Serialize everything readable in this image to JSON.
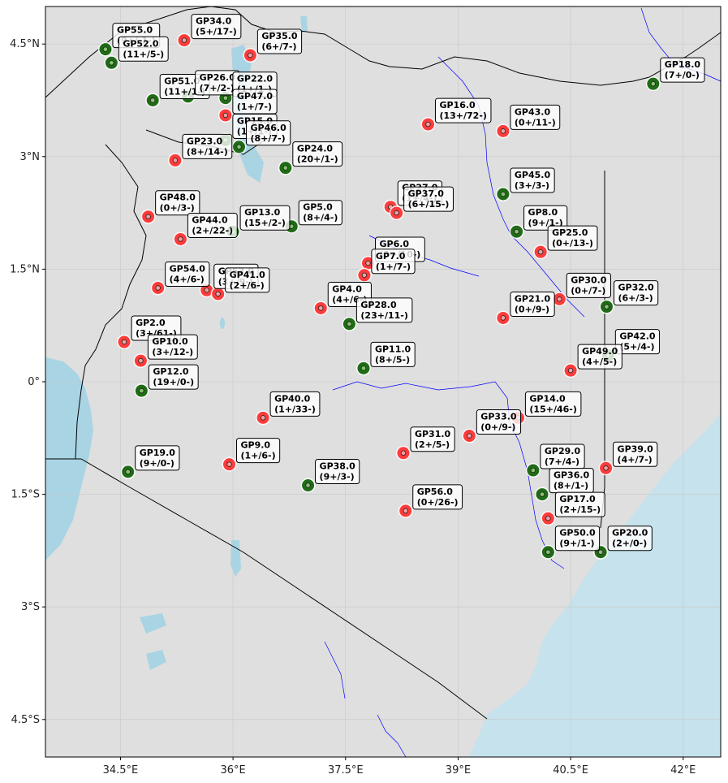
{
  "colors": {
    "land": "#dfdfdf",
    "water": "#c6e2ec",
    "lake": "#a9d4e4",
    "river": "#0000ff",
    "border": "#000000",
    "grid": "#c8c8c8",
    "positive": "#1f6b16",
    "negative": "#ff3b3b",
    "label_bg": "#ffffff"
  },
  "map": {
    "lon_range": [
      33.5,
      42.5
    ],
    "lat_range": [
      -5.0,
      5.0
    ],
    "x_ticks": [
      {
        "value": 34.5,
        "label": "34.5°E"
      },
      {
        "value": 36.0,
        "label": "36°E"
      },
      {
        "value": 37.5,
        "label": "37.5°E"
      },
      {
        "value": 39.0,
        "label": "39°E"
      },
      {
        "value": 40.5,
        "label": "40.5°E"
      },
      {
        "value": 42.0,
        "label": "42°E"
      }
    ],
    "y_ticks": [
      {
        "value": 4.5,
        "label": "4.5°N"
      },
      {
        "value": 3.0,
        "label": "3°N"
      },
      {
        "value": 1.5,
        "label": "1.5°N"
      },
      {
        "value": 0.0,
        "label": "0°"
      },
      {
        "value": -1.5,
        "label": "1.5°S"
      },
      {
        "value": -3.0,
        "label": "3°S"
      },
      {
        "value": -4.5,
        "label": "4.5°S"
      }
    ],
    "grid": true
  },
  "points": [
    {
      "name": "GP55.0",
      "counts": "(9+/-1-)",
      "lon": 34.3,
      "lat": 4.43,
      "pos": 9,
      "neg": 1
    },
    {
      "name": "GP52.0",
      "counts": "(11+/5-)",
      "lon": 34.38,
      "lat": 4.25,
      "pos": 11,
      "neg": 5
    },
    {
      "name": "GP34.0",
      "counts": "(5+/17-)",
      "lon": 35.35,
      "lat": 4.55,
      "pos": 5,
      "neg": 17
    },
    {
      "name": "GP35.0",
      "counts": "(6+/7-)",
      "lon": 36.23,
      "lat": 4.35,
      "pos": 6,
      "neg": 7
    },
    {
      "name": "GP51.0",
      "counts": "(11+/1-)",
      "lon": 34.93,
      "lat": 3.75,
      "pos": 11,
      "neg": 1
    },
    {
      "name": "GP26.0",
      "counts": "(7+/2-)",
      "lon": 35.4,
      "lat": 3.8,
      "pos": 7,
      "neg": 2
    },
    {
      "name": "GP22.0",
      "counts": "(1+/1-)",
      "lon": 35.9,
      "lat": 3.78,
      "pos": 1,
      "neg": 1
    },
    {
      "name": "GP47.0",
      "counts": "(1+/7-)",
      "lon": 35.9,
      "lat": 3.55,
      "pos": 1,
      "neg": 7
    },
    {
      "name": "GP15.0",
      "counts": "(1+/1-)",
      "lon": 35.9,
      "lat": 3.22,
      "pos": 1,
      "neg": 1
    },
    {
      "name": "GP46.0",
      "counts": "(8+/7-)",
      "lon": 36.08,
      "lat": 3.13,
      "pos": 8,
      "neg": 7
    },
    {
      "name": "GP23.0",
      "counts": "(8+/14-)",
      "lon": 35.23,
      "lat": 2.95,
      "pos": 8,
      "neg": 14
    },
    {
      "name": "GP24.0",
      "counts": "(20+/1-)",
      "lon": 36.7,
      "lat": 2.85,
      "pos": 20,
      "neg": 1
    },
    {
      "name": "GP16.0",
      "counts": "(13+/72-)",
      "lon": 38.6,
      "lat": 3.43,
      "pos": 13,
      "neg": 72
    },
    {
      "name": "GP43.0",
      "counts": "(0+/11-)",
      "lon": 39.6,
      "lat": 3.34,
      "pos": 0,
      "neg": 11
    },
    {
      "name": "GP18.0",
      "counts": "(7+/0-)",
      "lon": 41.6,
      "lat": 3.97,
      "pos": 7,
      "neg": 0
    },
    {
      "name": "GP45.0",
      "counts": "(3+/3-)",
      "lon": 39.6,
      "lat": 2.5,
      "pos": 3,
      "neg": 3
    },
    {
      "name": "GP48.0",
      "counts": "(0+/3-)",
      "lon": 34.87,
      "lat": 2.2,
      "pos": 0,
      "neg": 3
    },
    {
      "name": "GP44.0",
      "counts": "(2+/22-)",
      "lon": 35.3,
      "lat": 1.9,
      "pos": 2,
      "neg": 22
    },
    {
      "name": "GP13.0",
      "counts": "(15+/2-)",
      "lon": 36.0,
      "lat": 2.0,
      "pos": 15,
      "neg": 2
    },
    {
      "name": "GP5.0",
      "counts": "(8+/4-)",
      "lon": 36.78,
      "lat": 2.07,
      "pos": 8,
      "neg": 4
    },
    {
      "name": "GP27.0",
      "counts": "(1+/4-)",
      "lon": 38.1,
      "lat": 2.33,
      "pos": 1,
      "neg": 4
    },
    {
      "name": "GP37.0",
      "counts": "(6+/15-)",
      "lon": 38.18,
      "lat": 2.25,
      "pos": 6,
      "neg": 15
    },
    {
      "name": "GP8.0",
      "counts": "(9+/1-)",
      "lon": 39.78,
      "lat": 2.0,
      "pos": 9,
      "neg": 1
    },
    {
      "name": "GP25.0",
      "counts": "(0+/13-)",
      "lon": 40.1,
      "lat": 1.73,
      "pos": 0,
      "neg": 13
    },
    {
      "name": "GP6.0",
      "counts": "(3+/10-)",
      "lon": 37.8,
      "lat": 1.58,
      "pos": 3,
      "neg": 10
    },
    {
      "name": "GP7.0",
      "counts": "(1+/7-)",
      "lon": 37.75,
      "lat": 1.42,
      "pos": 1,
      "neg": 7
    },
    {
      "name": "GP54.0",
      "counts": "(4+/6-)",
      "lon": 35.0,
      "lat": 1.25,
      "pos": 4,
      "neg": 6
    },
    {
      "name": "GP53.0",
      "counts": "(3+/9-)",
      "lon": 35.65,
      "lat": 1.22,
      "pos": 3,
      "neg": 9
    },
    {
      "name": "GP41.0",
      "counts": "(2+/6-)",
      "lon": 35.8,
      "lat": 1.17,
      "pos": 2,
      "neg": 6
    },
    {
      "name": "GP30.0",
      "counts": "(0+/7-)",
      "lon": 40.35,
      "lat": 1.1,
      "pos": 0,
      "neg": 7
    },
    {
      "name": "GP32.0",
      "counts": "(6+/3-)",
      "lon": 40.98,
      "lat": 1.0,
      "pos": 6,
      "neg": 3
    },
    {
      "name": "GP4.0",
      "counts": "(4+/6-)",
      "lon": 37.17,
      "lat": 0.98,
      "pos": 4,
      "neg": 6
    },
    {
      "name": "GP28.0",
      "counts": "(23+/11-)",
      "lon": 37.55,
      "lat": 0.77,
      "pos": 23,
      "neg": 11
    },
    {
      "name": "GP21.0",
      "counts": "(0+/9-)",
      "lon": 39.6,
      "lat": 0.85,
      "pos": 0,
      "neg": 9
    },
    {
      "name": "GP2.0",
      "counts": "(3+/61-)",
      "lon": 34.55,
      "lat": 0.53,
      "pos": 3,
      "neg": 61
    },
    {
      "name": "GP10.0",
      "counts": "(3+/12-)",
      "lon": 34.77,
      "lat": 0.28,
      "pos": 3,
      "neg": 12
    },
    {
      "name": "GP42.0",
      "counts": "(5+/4-)",
      "lon": 41.0,
      "lat": 0.35,
      "pos": 5,
      "neg": 4
    },
    {
      "name": "GP11.0",
      "counts": "(8+/5-)",
      "lon": 37.74,
      "lat": 0.18,
      "pos": 8,
      "neg": 5
    },
    {
      "name": "GP49.0",
      "counts": "(4+/5-)",
      "lon": 40.5,
      "lat": 0.15,
      "pos": 4,
      "neg": 5
    },
    {
      "name": "GP12.0",
      "counts": "(19+/0-)",
      "lon": 34.78,
      "lat": -0.12,
      "pos": 19,
      "neg": 0
    },
    {
      "name": "GP40.0",
      "counts": "(1+/33-)",
      "lon": 36.4,
      "lat": -0.48,
      "pos": 1,
      "neg": 33
    },
    {
      "name": "GP14.0",
      "counts": "(15+/46-)",
      "lon": 39.8,
      "lat": -0.48,
      "pos": 15,
      "neg": 46
    },
    {
      "name": "GP33.0",
      "counts": "(0+/9-)",
      "lon": 39.15,
      "lat": -0.72,
      "pos": 0,
      "neg": 9
    },
    {
      "name": "GP31.0",
      "counts": "(2+/5-)",
      "lon": 38.27,
      "lat": -0.95,
      "pos": 2,
      "neg": 5
    },
    {
      "name": "GP9.0",
      "counts": "(1+/6-)",
      "lon": 35.95,
      "lat": -1.1,
      "pos": 1,
      "neg": 6
    },
    {
      "name": "GP19.0",
      "counts": "(9+/0-)",
      "lon": 34.6,
      "lat": -1.2,
      "pos": 9,
      "neg": 0
    },
    {
      "name": "GP38.0",
      "counts": "(9+/3-)",
      "lon": 37.0,
      "lat": -1.38,
      "pos": 9,
      "neg": 3
    },
    {
      "name": "GP29.0",
      "counts": "(7+/4-)",
      "lon": 40.0,
      "lat": -1.18,
      "pos": 7,
      "neg": 4
    },
    {
      "name": "GP39.0",
      "counts": "(4+/7-)",
      "lon": 40.97,
      "lat": -1.15,
      "pos": 4,
      "neg": 7
    },
    {
      "name": "GP36.0",
      "counts": "(8+/1-)",
      "lon": 40.12,
      "lat": -1.5,
      "pos": 8,
      "neg": 1
    },
    {
      "name": "GP56.0",
      "counts": "(0+/26-)",
      "lon": 38.3,
      "lat": -1.72,
      "pos": 0,
      "neg": 26
    },
    {
      "name": "GP17.0",
      "counts": "(2+/15-)",
      "lon": 40.2,
      "lat": -1.82,
      "pos": 2,
      "neg": 15
    },
    {
      "name": "GP50.0",
      "counts": "(9+/1-)",
      "lon": 40.2,
      "lat": -2.27,
      "pos": 9,
      "neg": 1
    },
    {
      "name": "GP20.0",
      "counts": "(2+/0-)",
      "lon": 40.9,
      "lat": -2.27,
      "pos": 2,
      "neg": 0
    }
  ]
}
